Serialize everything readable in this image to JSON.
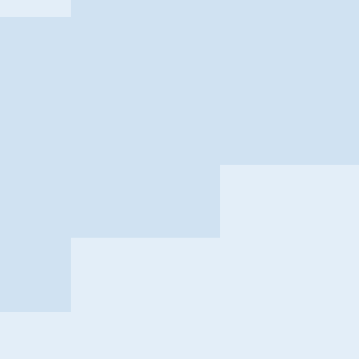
{
  "colors": {
    "background_light": "#E3EEF8",
    "highlight_blue": "#D0E2F2"
  },
  "regions": [
    {
      "name": "background",
      "color": "#E3EEF8"
    },
    {
      "name": "top-left-strip",
      "color": "#E3EEF8"
    },
    {
      "name": "upper-band",
      "color": "#D0E2F2"
    },
    {
      "name": "mid-block",
      "color": "#D0E2F2"
    },
    {
      "name": "center-block",
      "color": "#D0E2F2"
    },
    {
      "name": "left-column",
      "color": "#D0E2F2"
    }
  ]
}
